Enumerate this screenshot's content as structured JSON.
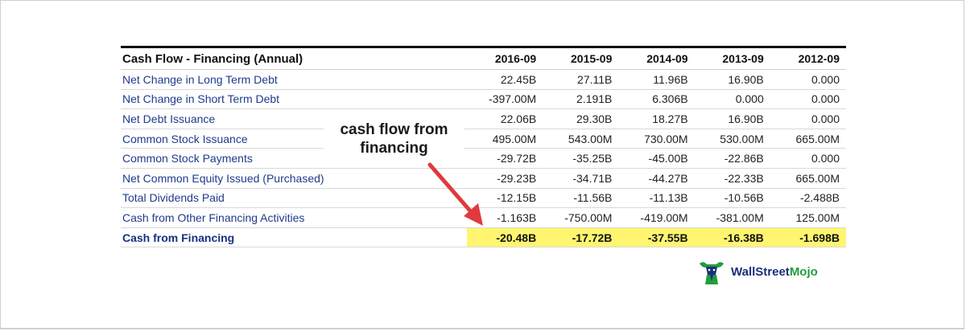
{
  "table": {
    "title": "Cash Flow - Financing (Annual)",
    "columns": [
      "2016-09",
      "2015-09",
      "2014-09",
      "2013-09",
      "2012-09"
    ],
    "rows": [
      {
        "label": "Net Change in Long Term Debt",
        "values": [
          "22.45B",
          "27.11B",
          "11.96B",
          "16.90B",
          "0.000"
        ]
      },
      {
        "label": "Net Change in Short Term Debt",
        "values": [
          "-397.00M",
          "2.191B",
          "6.306B",
          "0.000",
          "0.000"
        ]
      },
      {
        "label": "Net Debt Issuance",
        "values": [
          "22.06B",
          "29.30B",
          "18.27B",
          "16.90B",
          "0.000"
        ]
      },
      {
        "label": "Common Stock Issuance",
        "values": [
          "495.00M",
          "543.00M",
          "730.00M",
          "530.00M",
          "665.00M"
        ]
      },
      {
        "label": "Common Stock Payments",
        "values": [
          "-29.72B",
          "-35.25B",
          "-45.00B",
          "-22.86B",
          "0.000"
        ]
      },
      {
        "label": "Net Common Equity Issued (Purchased)",
        "values": [
          "-29.23B",
          "-34.71B",
          "-44.27B",
          "-22.33B",
          "665.00M"
        ]
      },
      {
        "label": "Total Dividends Paid",
        "values": [
          "-12.15B",
          "-11.56B",
          "-11.13B",
          "-10.56B",
          "-2.488B"
        ]
      },
      {
        "label": "Cash from Other Financing Activities",
        "values": [
          "-1.163B",
          "-750.00M",
          "-419.00M",
          "-381.00M",
          "125.00M"
        ]
      }
    ],
    "total": {
      "label": "Cash from Financing",
      "values": [
        "-20.48B",
        "-17.72B",
        "-37.55B",
        "-16.38B",
        "-1.698B"
      ]
    }
  },
  "annotation": {
    "line1": "cash flow from",
    "line2": "financing"
  },
  "logo": {
    "part1": "Wall",
    "part2": "Street",
    "part3": "Mojo",
    "icon": "bull-mascot-icon"
  },
  "colors": {
    "highlight": "#fff570",
    "label_blue": "#1f3b8c",
    "arrow_red": "#e03a3e",
    "logo_green": "#1f9e3d"
  }
}
